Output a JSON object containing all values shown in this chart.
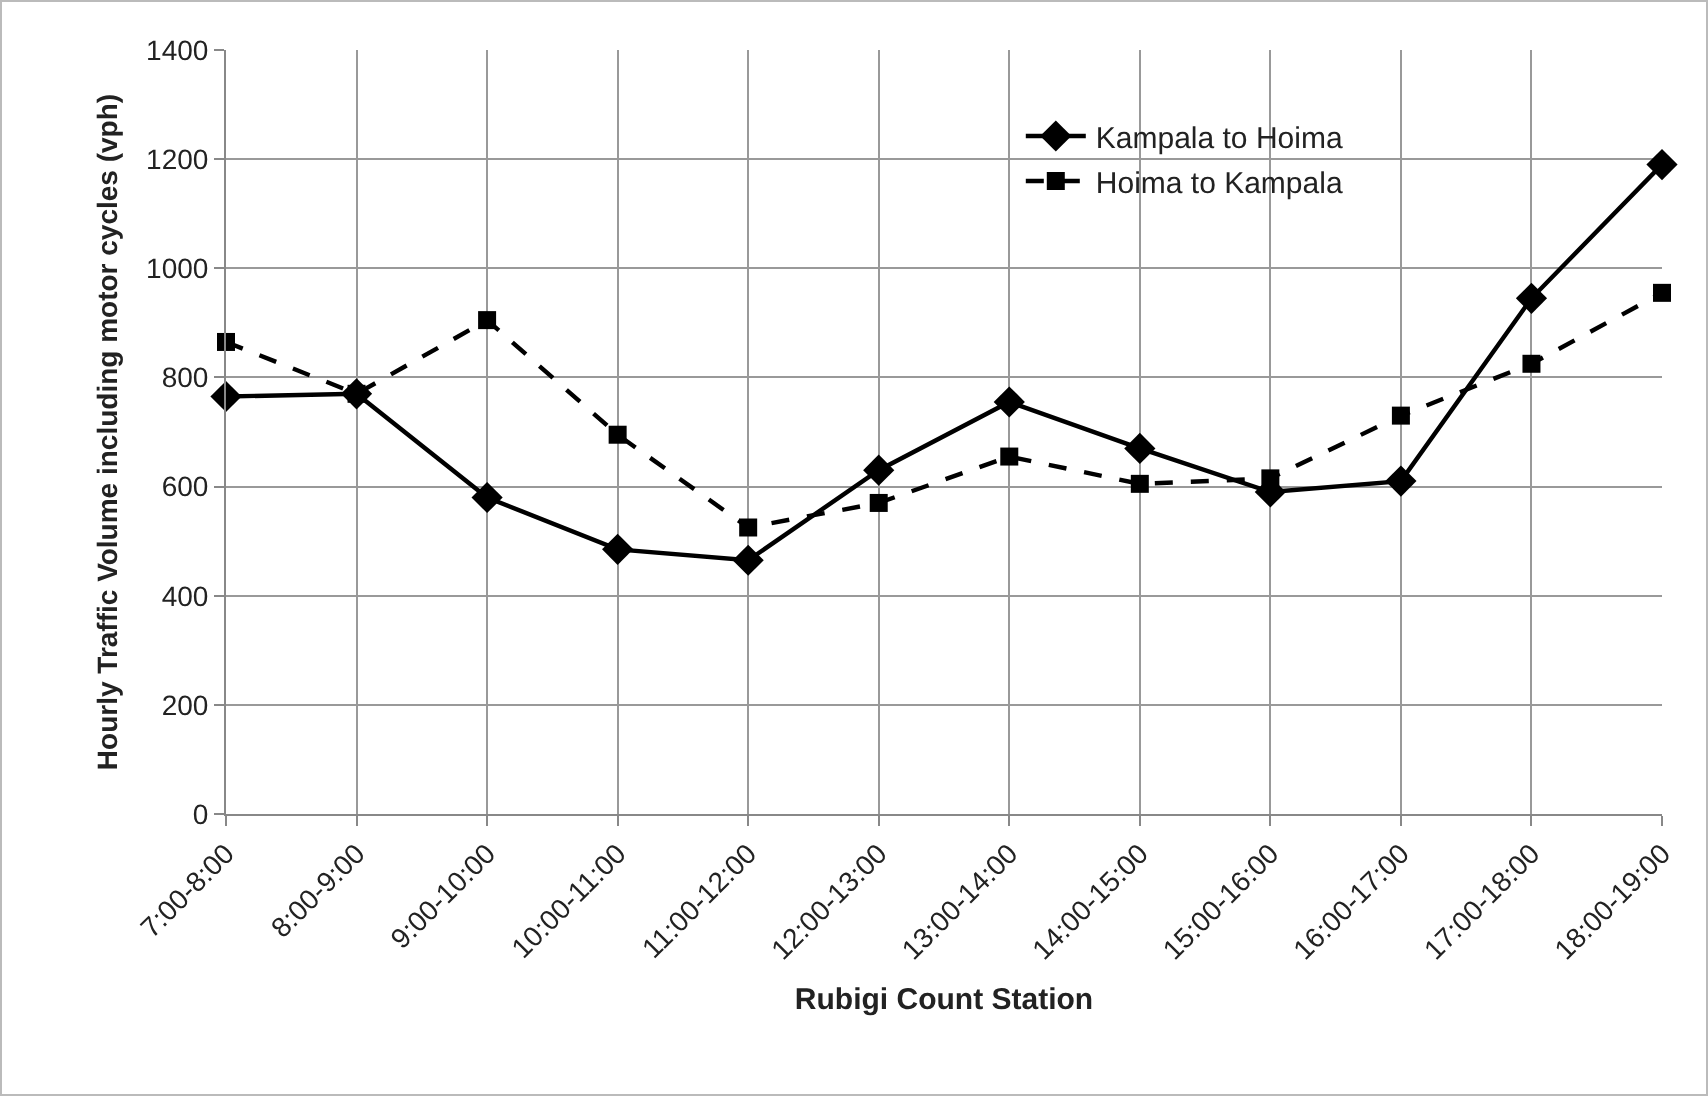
{
  "chart_data": {
    "type": "line",
    "xlabel": "Rubigi Count Station",
    "ylabel": "Hourly Traffic Volume including motor cycles (vph)",
    "categories": [
      "7:00-8:00",
      "8:00-9:00",
      "9:00-10:00",
      "10:00-11:00",
      "11:00-12:00",
      "12:00-13:00",
      "13:00-14:00",
      "14:00-15:00",
      "15:00-16:00",
      "16:00-17:00",
      "17:00-18:00",
      "18:00-19:00"
    ],
    "series": [
      {
        "name": "Kampala to Hoima",
        "color": "#000000",
        "marker": "diamond",
        "line_style": "solid",
        "values": [
          765,
          770,
          580,
          485,
          465,
          630,
          755,
          670,
          590,
          610,
          945,
          1190
        ]
      },
      {
        "name": "Hoima to Kampala",
        "color": "#000000",
        "marker": "square",
        "line_style": "dashed",
        "values": [
          865,
          770,
          905,
          695,
          525,
          570,
          655,
          605,
          615,
          730,
          825,
          955
        ]
      }
    ],
    "ylim": [
      0,
      1400
    ],
    "yticks": [
      0,
      200,
      400,
      600,
      800,
      1000,
      1200,
      1400
    ],
    "grid": true,
    "legend": "top right"
  }
}
